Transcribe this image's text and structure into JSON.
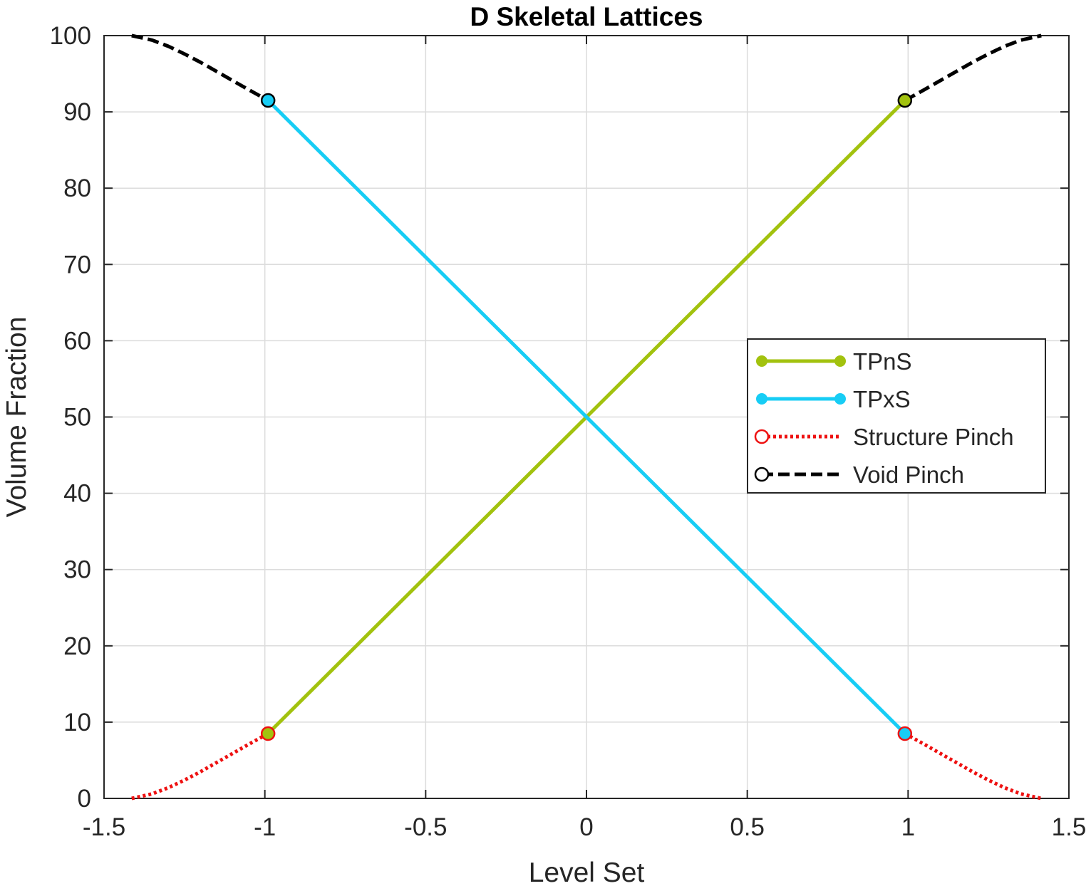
{
  "chart_data": {
    "type": "line",
    "title": "D Skeletal Lattices",
    "xlabel": "Level Set",
    "ylabel": "Volume Fraction",
    "xlim": [
      -1.5,
      1.5
    ],
    "ylim": [
      0,
      100
    ],
    "xticks": [
      -1.5,
      -1,
      -0.5,
      0,
      0.5,
      1,
      1.5
    ],
    "xtick_labels": [
      "-1.5",
      "-1",
      "-0.5",
      "0",
      "0.5",
      "1",
      "1.5"
    ],
    "yticks": [
      0,
      10,
      20,
      30,
      40,
      50,
      60,
      70,
      80,
      90,
      100
    ],
    "ytick_labels": [
      "0",
      "10",
      "20",
      "30",
      "40",
      "50",
      "60",
      "70",
      "80",
      "90",
      "100"
    ],
    "grid": true,
    "legend_position": "right",
    "series": [
      {
        "name": "TPnS",
        "color": "#a2c20e",
        "style": "solid",
        "marker": "filled-circle",
        "x": [
          -0.99,
          0.99
        ],
        "y": [
          8.5,
          91.5
        ]
      },
      {
        "name": "TPxS",
        "color": "#17cdf5",
        "style": "solid",
        "marker": "filled-circle",
        "x": [
          -0.99,
          0.99
        ],
        "y": [
          91.5,
          8.5
        ]
      },
      {
        "name": "Structure Pinch",
        "color": "#ee1111",
        "style": "dotted",
        "marker": "open-circle",
        "segments": [
          {
            "x": [
              -1.414,
              -1.35,
              -1.3,
              -1.25,
              -1.2,
              -1.15,
              -1.1,
              -1.05,
              -0.99
            ],
            "y": [
              0,
              0.6,
              1.4,
              2.4,
              3.5,
              4.7,
              5.9,
              7.1,
              8.5
            ]
          },
          {
            "x": [
              0.99,
              1.05,
              1.1,
              1.15,
              1.2,
              1.25,
              1.3,
              1.35,
              1.414
            ],
            "y": [
              8.5,
              7.1,
              5.9,
              4.7,
              3.5,
              2.4,
              1.4,
              0.6,
              0
            ]
          }
        ]
      },
      {
        "name": "Void Pinch",
        "color": "#000000",
        "style": "dashed",
        "marker": "open-circle",
        "segments": [
          {
            "x": [
              -1.414,
              -1.35,
              -1.3,
              -1.25,
              -1.2,
              -1.15,
              -1.1,
              -1.05,
              -0.99
            ],
            "y": [
              100,
              99.4,
              98.6,
              97.6,
              96.5,
              95.3,
              94.1,
              92.9,
              91.5
            ]
          },
          {
            "x": [
              0.99,
              1.05,
              1.1,
              1.15,
              1.2,
              1.25,
              1.3,
              1.35,
              1.414
            ],
            "y": [
              91.5,
              92.9,
              94.1,
              95.3,
              96.5,
              97.6,
              98.6,
              99.4,
              100
            ]
          }
        ]
      }
    ]
  }
}
